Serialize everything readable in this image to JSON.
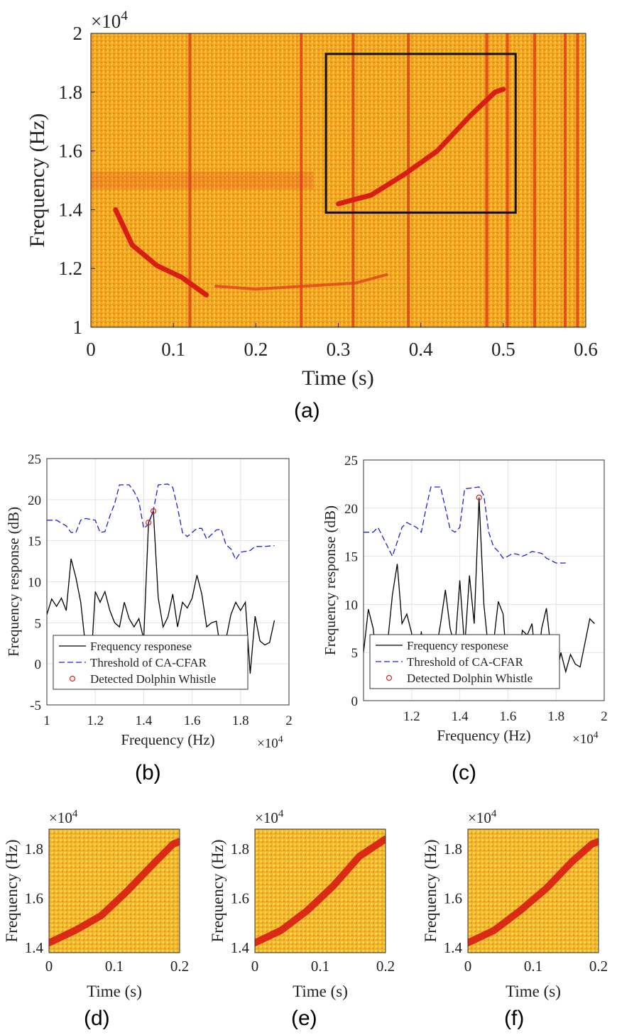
{
  "panel_labels": {
    "a": "(a)",
    "b": "(b)",
    "c": "(c)",
    "d": "(d)",
    "e": "(e)",
    "f": "(f)"
  },
  "colors": {
    "spectro_bg": "#f3a321",
    "spectro_streak": "#e0401a",
    "whistle": "#d81e12",
    "freq_response": "#000000",
    "threshold": "#2020d0",
    "detected": "#dd2222",
    "noise_speck": "#7fd0c0"
  },
  "chart_data": [
    {
      "id": "a",
      "type": "heatmap",
      "xlabel": "Time (s)",
      "ylabel": "Frequency (Hz)",
      "y_multiplier": "×10^4",
      "xlim": [
        0,
        0.6
      ],
      "ylim": [
        1,
        2
      ],
      "xticks": [
        "0",
        "0.1",
        "0.2",
        "0.3",
        "0.4",
        "0.5",
        "0.6"
      ],
      "yticks": [
        "1",
        "1.2",
        "1.4",
        "1.6",
        "1.8",
        "2"
      ],
      "vertical_streaks_s": [
        0.12,
        0.255,
        0.318,
        0.385,
        0.48,
        0.505,
        0.538,
        0.575,
        0.59
      ],
      "whistle_low": [
        [
          0.03,
          1.4
        ],
        [
          0.05,
          1.28
        ],
        [
          0.08,
          1.21
        ],
        [
          0.11,
          1.17
        ],
        [
          0.14,
          1.11
        ]
      ],
      "whistle_low_tail": [
        [
          0.15,
          1.14
        ],
        [
          0.2,
          1.13
        ],
        [
          0.26,
          1.14
        ],
        [
          0.32,
          1.15
        ],
        [
          0.36,
          1.18
        ]
      ],
      "whistle_high": [
        [
          0.3,
          1.42
        ],
        [
          0.34,
          1.45
        ],
        [
          0.38,
          1.52
        ],
        [
          0.42,
          1.6
        ],
        [
          0.46,
          1.72
        ],
        [
          0.49,
          1.8
        ],
        [
          0.5,
          1.81
        ]
      ],
      "box": {
        "x0": 0.285,
        "x1": 0.515,
        "y0": 1.39,
        "y1": 1.93
      }
    },
    {
      "id": "b",
      "type": "line",
      "xlabel": "Frequency (Hz)",
      "ylabel": "Frequency response (dB)",
      "x_multiplier": "×10^4",
      "xlim": [
        1,
        2
      ],
      "ylim": [
        -5,
        25
      ],
      "xticks": [
        "1",
        "1.2",
        "1.4",
        "1.6",
        "1.8",
        "2"
      ],
      "yticks": [
        "-5",
        "0",
        "5",
        "10",
        "15",
        "20",
        "25"
      ],
      "legend": {
        "position": "bottom-left",
        "entries": [
          "Frequency responese",
          "Threshold of CA-CFAR",
          "Detected Dolphin Whistle"
        ]
      },
      "series": [
        {
          "name": "Frequency responese",
          "style": "solid",
          "points": [
            [
              1.0,
              6
            ],
            [
              1.02,
              7.9
            ],
            [
              1.04,
              7
            ],
            [
              1.06,
              8
            ],
            [
              1.08,
              6.5
            ],
            [
              1.1,
              12.8
            ],
            [
              1.12,
              10.5
            ],
            [
              1.14,
              7.5
            ],
            [
              1.16,
              2
            ],
            [
              1.18,
              -1
            ],
            [
              1.2,
              8.8
            ],
            [
              1.22,
              7.5
            ],
            [
              1.24,
              8.8
            ],
            [
              1.26,
              6.5
            ],
            [
              1.28,
              5
            ],
            [
              1.3,
              4.5
            ],
            [
              1.32,
              7.5
            ],
            [
              1.34,
              5.5
            ],
            [
              1.36,
              4.5
            ],
            [
              1.38,
              5.5
            ],
            [
              1.4,
              3
            ],
            [
              1.42,
              17.2
            ],
            [
              1.44,
              18.6
            ],
            [
              1.46,
              8
            ],
            [
              1.48,
              4.5
            ],
            [
              1.5,
              5.7
            ],
            [
              1.52,
              8.5
            ],
            [
              1.54,
              4.5
            ],
            [
              1.56,
              7.5
            ],
            [
              1.58,
              6.8
            ],
            [
              1.6,
              8
            ],
            [
              1.62,
              10.8
            ],
            [
              1.64,
              8.5
            ],
            [
              1.66,
              4.5
            ],
            [
              1.68,
              5
            ],
            [
              1.7,
              5.2
            ],
            [
              1.72,
              1.2
            ],
            [
              1.74,
              3
            ],
            [
              1.76,
              6
            ],
            [
              1.78,
              7.5
            ],
            [
              1.8,
              6.5
            ],
            [
              1.82,
              7.5
            ],
            [
              1.84,
              -1.2
            ],
            [
              1.86,
              5.8
            ],
            [
              1.88,
              2.8
            ],
            [
              1.9,
              2.3
            ],
            [
              1.92,
              2.6
            ],
            [
              1.94,
              5.3
            ]
          ]
        },
        {
          "name": "Threshold of CA-CFAR",
          "style": "dashed",
          "points": [
            [
              1.0,
              17.5
            ],
            [
              1.04,
              17.5
            ],
            [
              1.08,
              16.8
            ],
            [
              1.1,
              16
            ],
            [
              1.12,
              16
            ],
            [
              1.14,
              17.5
            ],
            [
              1.16,
              17.7
            ],
            [
              1.2,
              17.5
            ],
            [
              1.22,
              16
            ],
            [
              1.24,
              16.1
            ],
            [
              1.26,
              18
            ],
            [
              1.28,
              19.5
            ],
            [
              1.3,
              21.8
            ],
            [
              1.34,
              21.8
            ],
            [
              1.36,
              21
            ],
            [
              1.38,
              19.8
            ],
            [
              1.4,
              16.5
            ],
            [
              1.42,
              17
            ],
            [
              1.44,
              18.7
            ],
            [
              1.46,
              21.8
            ],
            [
              1.5,
              21.9
            ],
            [
              1.52,
              21.5
            ],
            [
              1.54,
              19
            ],
            [
              1.56,
              16
            ],
            [
              1.58,
              15.5
            ],
            [
              1.6,
              16
            ],
            [
              1.62,
              16.5
            ],
            [
              1.64,
              16.5
            ],
            [
              1.66,
              15.2
            ],
            [
              1.7,
              16.3
            ],
            [
              1.72,
              16.4
            ],
            [
              1.74,
              14.5
            ],
            [
              1.76,
              14
            ],
            [
              1.78,
              12.7
            ],
            [
              1.8,
              13.6
            ],
            [
              1.84,
              13.8
            ],
            [
              1.86,
              14.3
            ],
            [
              1.88,
              14.3
            ],
            [
              1.9,
              14.3
            ],
            [
              1.94,
              14.4
            ]
          ]
        }
      ],
      "detected_points": [
        [
          1.42,
          17.2
        ],
        [
          1.44,
          18.6
        ]
      ]
    },
    {
      "id": "c",
      "type": "line",
      "xlabel": "Frequency (Hz)",
      "ylabel": "Frequency response (dB)",
      "x_multiplier": "×10^4",
      "xlim": [
        1,
        2
      ],
      "ylim": [
        0,
        25
      ],
      "xticks": [
        "1.2",
        "1.4",
        "1.6",
        "1.8",
        "2"
      ],
      "yticks": [
        "0",
        "5",
        "10",
        "15",
        "20",
        "25"
      ],
      "legend": {
        "position": "bottom-left",
        "entries": [
          "Frequency responese",
          "Threshold of CA-CFAR",
          "Detected Dolphin Whistle"
        ]
      },
      "series": [
        {
          "name": "Frequency responese",
          "style": "solid",
          "points": [
            [
              1.0,
              5
            ],
            [
              1.02,
              9.5
            ],
            [
              1.04,
              7.5
            ],
            [
              1.06,
              3
            ],
            [
              1.08,
              2
            ],
            [
              1.1,
              6
            ],
            [
              1.12,
              11
            ],
            [
              1.14,
              14.2
            ],
            [
              1.16,
              8
            ],
            [
              1.18,
              9
            ],
            [
              1.2,
              7
            ],
            [
              1.22,
              2
            ],
            [
              1.24,
              7.2
            ],
            [
              1.26,
              2
            ],
            [
              1.28,
              4
            ],
            [
              1.3,
              5
            ],
            [
              1.32,
              8
            ],
            [
              1.34,
              11.5
            ],
            [
              1.36,
              7.5
            ],
            [
              1.38,
              5.5
            ],
            [
              1.4,
              12.5
            ],
            [
              1.42,
              5.5
            ],
            [
              1.44,
              13
            ],
            [
              1.46,
              8
            ],
            [
              1.48,
              21.1
            ],
            [
              1.5,
              10
            ],
            [
              1.52,
              5
            ],
            [
              1.54,
              6
            ],
            [
              1.56,
              10.3
            ],
            [
              1.58,
              9
            ],
            [
              1.6,
              2
            ],
            [
              1.62,
              5.5
            ],
            [
              1.64,
              3
            ],
            [
              1.66,
              7.3
            ],
            [
              1.68,
              6.8
            ],
            [
              1.7,
              8
            ],
            [
              1.72,
              3
            ],
            [
              1.74,
              7.5
            ],
            [
              1.76,
              9.6
            ],
            [
              1.78,
              5
            ],
            [
              1.8,
              2.5
            ],
            [
              1.82,
              5
            ],
            [
              1.84,
              3
            ],
            [
              1.86,
              4.8
            ],
            [
              1.88,
              3.8
            ],
            [
              1.9,
              3.5
            ],
            [
              1.92,
              6
            ],
            [
              1.94,
              8.5
            ],
            [
              1.96,
              8
            ]
          ]
        },
        {
          "name": "Threshold of CA-CFAR",
          "style": "dashed",
          "points": [
            [
              1.0,
              17.5
            ],
            [
              1.04,
              17.5
            ],
            [
              1.06,
              18
            ],
            [
              1.08,
              17
            ],
            [
              1.1,
              16
            ],
            [
              1.12,
              15
            ],
            [
              1.14,
              16.5
            ],
            [
              1.16,
              18
            ],
            [
              1.18,
              18.5
            ],
            [
              1.22,
              18
            ],
            [
              1.24,
              17.5
            ],
            [
              1.26,
              20
            ],
            [
              1.28,
              22.2
            ],
            [
              1.32,
              22.2
            ],
            [
              1.34,
              20
            ],
            [
              1.36,
              17.8
            ],
            [
              1.38,
              17.5
            ],
            [
              1.4,
              18
            ],
            [
              1.42,
              22
            ],
            [
              1.48,
              22.2
            ],
            [
              1.5,
              21.3
            ],
            [
              1.52,
              17.5
            ],
            [
              1.54,
              16
            ],
            [
              1.56,
              15.5
            ],
            [
              1.58,
              14.8
            ],
            [
              1.6,
              15
            ],
            [
              1.62,
              15.3
            ],
            [
              1.64,
              15.2
            ],
            [
              1.66,
              15
            ],
            [
              1.68,
              15.2
            ],
            [
              1.7,
              15.5
            ],
            [
              1.74,
              15.3
            ],
            [
              1.76,
              14.8
            ],
            [
              1.8,
              14.3
            ],
            [
              1.84,
              14.3
            ]
          ]
        }
      ],
      "detected_points": [
        [
          1.48,
          21.1
        ]
      ]
    },
    {
      "id": "d",
      "type": "heatmap",
      "xlabel": "Time (s)",
      "ylabel": "Frequency (Hz)",
      "y_multiplier": "×10^4",
      "xlim": [
        0,
        0.2
      ],
      "ylim": [
        1.38,
        1.88
      ],
      "xticks": [
        "0",
        "0.1",
        "0.2"
      ],
      "yticks": [
        "1.4",
        "1.6",
        "1.8"
      ],
      "whistle": [
        [
          0.0,
          1.42
        ],
        [
          0.04,
          1.47
        ],
        [
          0.08,
          1.53
        ],
        [
          0.12,
          1.63
        ],
        [
          0.16,
          1.74
        ],
        [
          0.19,
          1.82
        ],
        [
          0.2,
          1.83
        ]
      ]
    },
    {
      "id": "e",
      "type": "heatmap",
      "xlabel": "Time (s)",
      "ylabel": "Frequency (Hz)",
      "y_multiplier": "×10^4",
      "xlim": [
        0,
        0.2
      ],
      "ylim": [
        1.38,
        1.88
      ],
      "xticks": [
        "0",
        "0.1",
        "0.2"
      ],
      "yticks": [
        "1.4",
        "1.6",
        "1.8"
      ],
      "whistle": [
        [
          0.0,
          1.42
        ],
        [
          0.04,
          1.47
        ],
        [
          0.08,
          1.55
        ],
        [
          0.12,
          1.65
        ],
        [
          0.16,
          1.77
        ],
        [
          0.2,
          1.84
        ]
      ]
    },
    {
      "id": "f",
      "type": "heatmap",
      "xlabel": "Time (s)",
      "ylabel": "Frequency (Hz)",
      "y_multiplier": "×10^4",
      "xlim": [
        0,
        0.2
      ],
      "ylim": [
        1.38,
        1.88
      ],
      "xticks": [
        "0",
        "0.1",
        "0.2"
      ],
      "yticks": [
        "1.4",
        "1.6",
        "1.8"
      ],
      "whistle": [
        [
          0.0,
          1.42
        ],
        [
          0.04,
          1.47
        ],
        [
          0.08,
          1.55
        ],
        [
          0.12,
          1.64
        ],
        [
          0.16,
          1.75
        ],
        [
          0.19,
          1.82
        ],
        [
          0.2,
          1.83
        ]
      ]
    }
  ]
}
